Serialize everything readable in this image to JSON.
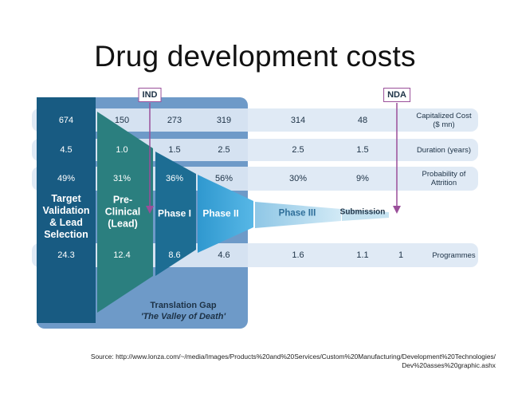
{
  "title": "Drug development costs",
  "markers": {
    "ind": "IND",
    "nda": "NDA"
  },
  "row_labels": {
    "cost_line1": "Capitalized Cost",
    "cost_line2": "($ mn)",
    "duration": "Duration (years)",
    "prob_line1": "Probability of",
    "prob_line2": "Attrition",
    "programmes": "Programmes"
  },
  "rows": {
    "cost": [
      "674",
      "150",
      "273",
      "319",
      "314",
      "48"
    ],
    "duration": [
      "4.5",
      "1.0",
      "1.5",
      "2.5",
      "2.5",
      "1.5"
    ],
    "probability": [
      "49%",
      "31%",
      "36%",
      "56%",
      "30%",
      "9%"
    ],
    "programmes": [
      "24.3",
      "12.4",
      "8.6",
      "4.6",
      "1.6",
      "1.1",
      "1"
    ]
  },
  "phases": {
    "target_l1": "Target",
    "target_l2": "Validation",
    "target_l3": "& Lead",
    "target_l4": "Selection",
    "preclinical_l1": "Pre-",
    "preclinical_l2": "Clinical",
    "preclinical_l3": "(Lead)",
    "phase1": "Phase I",
    "phase2": "Phase II",
    "phase3": "Phase III",
    "submission": "Submission"
  },
  "translation_gap": {
    "title": "Translation Gap",
    "subtitle": "'The Valley of Death'"
  },
  "source": {
    "line1": "Source: http://www.lonza.com/~/media/Images/Products%20and%20Services/Custom%20Manufacturing/Development%20Technologies/",
    "line2": "Dev%20asses%20graphic.ashx"
  },
  "colors": {
    "panel": "#6e9ac8",
    "band": "#dde8f4",
    "target": "#185b82",
    "preclinical": "#2b7f7f",
    "phase1": "#1d6d93",
    "phase2": "#3aa2d6",
    "phase3": "#a7d3ea",
    "submission": "#c6e3f1",
    "marker_border": "#9a4f9a"
  }
}
